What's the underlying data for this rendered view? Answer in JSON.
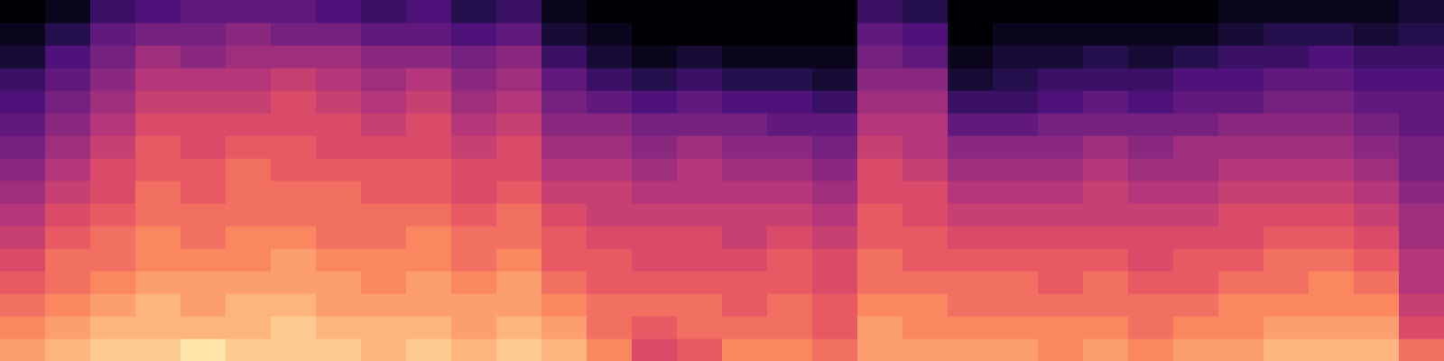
{
  "chart_data": {
    "type": "heatmap",
    "tick_labels": false,
    "color_range": [
      0,
      1
    ],
    "cells": [
      [
        0.8,
        0.75,
        0.7,
        0.65,
        0.6,
        0.55,
        0.5,
        0.45,
        0.4,
        0.35,
        0.3,
        0.25,
        0.2,
        0.1,
        0.05,
        0.0
      ],
      [
        0.85,
        0.8,
        0.75,
        0.7,
        0.7,
        0.65,
        0.6,
        0.55,
        0.5,
        0.45,
        0.4,
        0.35,
        0.3,
        0.25,
        0.15,
        0.05
      ],
      [
        0.9,
        0.85,
        0.8,
        0.75,
        0.7,
        0.7,
        0.65,
        0.6,
        0.6,
        0.55,
        0.5,
        0.45,
        0.4,
        0.35,
        0.3,
        0.2
      ],
      [
        0.9,
        0.85,
        0.85,
        0.8,
        0.75,
        0.75,
        0.7,
        0.7,
        0.65,
        0.65,
        0.6,
        0.55,
        0.5,
        0.45,
        0.35,
        0.25
      ],
      [
        0.95,
        0.85,
        0.8,
        0.8,
        0.75,
        0.7,
        0.7,
        0.65,
        0.65,
        0.6,
        0.6,
        0.55,
        0.5,
        0.4,
        0.35,
        0.3
      ],
      [
        0.9,
        0.85,
        0.85,
        0.8,
        0.75,
        0.75,
        0.7,
        0.7,
        0.7,
        0.65,
        0.6,
        0.55,
        0.5,
        0.45,
        0.4,
        0.3
      ],
      [
        0.9,
        0.9,
        0.85,
        0.8,
        0.8,
        0.75,
        0.7,
        0.7,
        0.65,
        0.65,
        0.6,
        0.6,
        0.55,
        0.45,
        0.35,
        0.3
      ],
      [
        0.9,
        0.85,
        0.8,
        0.8,
        0.75,
        0.7,
        0.7,
        0.7,
        0.65,
        0.6,
        0.6,
        0.55,
        0.5,
        0.45,
        0.35,
        0.25
      ],
      [
        0.85,
        0.85,
        0.8,
        0.75,
        0.75,
        0.7,
        0.7,
        0.65,
        0.65,
        0.6,
        0.55,
        0.5,
        0.45,
        0.4,
        0.3,
        0.2
      ],
      [
        0.9,
        0.85,
        0.8,
        0.8,
        0.75,
        0.75,
        0.7,
        0.65,
        0.65,
        0.6,
        0.6,
        0.55,
        0.5,
        0.4,
        0.3,
        0.25
      ],
      [
        0.85,
        0.8,
        0.8,
        0.75,
        0.7,
        0.7,
        0.65,
        0.6,
        0.6,
        0.55,
        0.5,
        0.45,
        0.4,
        0.35,
        0.25,
        0.15
      ],
      [
        0.9,
        0.85,
        0.8,
        0.8,
        0.75,
        0.7,
        0.7,
        0.65,
        0.6,
        0.6,
        0.55,
        0.5,
        0.45,
        0.4,
        0.3,
        0.2
      ],
      [
        0.85,
        0.8,
        0.75,
        0.7,
        0.65,
        0.65,
        0.6,
        0.55,
        0.5,
        0.45,
        0.4,
        0.35,
        0.3,
        0.2,
        0.1,
        0.05
      ],
      [
        0.75,
        0.7,
        0.7,
        0.65,
        0.65,
        0.6,
        0.55,
        0.55,
        0.5,
        0.45,
        0.4,
        0.3,
        0.2,
        0.1,
        0.05,
        0.0
      ],
      [
        0.6,
        0.65,
        0.7,
        0.65,
        0.6,
        0.6,
        0.55,
        0.5,
        0.45,
        0.4,
        0.35,
        0.25,
        0.15,
        0.05,
        0.0,
        0.0
      ],
      [
        0.65,
        0.7,
        0.7,
        0.65,
        0.6,
        0.6,
        0.55,
        0.5,
        0.5,
        0.45,
        0.35,
        0.3,
        0.2,
        0.1,
        0.0,
        0.0
      ],
      [
        0.75,
        0.7,
        0.65,
        0.65,
        0.6,
        0.55,
        0.55,
        0.5,
        0.45,
        0.4,
        0.35,
        0.25,
        0.15,
        0.05,
        0.0,
        0.0
      ],
      [
        0.75,
        0.7,
        0.7,
        0.65,
        0.65,
        0.6,
        0.55,
        0.5,
        0.45,
        0.4,
        0.3,
        0.25,
        0.15,
        0.05,
        0.0,
        0.0
      ],
      [
        0.7,
        0.65,
        0.65,
        0.6,
        0.6,
        0.55,
        0.5,
        0.45,
        0.4,
        0.35,
        0.3,
        0.2,
        0.1,
        0.05,
        0.0,
        0.0
      ],
      [
        0.8,
        0.8,
        0.75,
        0.7,
        0.7,
        0.65,
        0.65,
        0.6,
        0.6,
        0.55,
        0.5,
        0.45,
        0.4,
        0.35,
        0.3,
        0.2
      ],
      [
        0.8,
        0.75,
        0.75,
        0.7,
        0.65,
        0.65,
        0.6,
        0.6,
        0.55,
        0.5,
        0.5,
        0.45,
        0.4,
        0.3,
        0.25,
        0.15
      ],
      [
        0.8,
        0.75,
        0.7,
        0.7,
        0.65,
        0.6,
        0.55,
        0.5,
        0.45,
        0.4,
        0.3,
        0.2,
        0.1,
        0.05,
        0.0,
        0.0
      ],
      [
        0.8,
        0.75,
        0.7,
        0.7,
        0.65,
        0.6,
        0.55,
        0.5,
        0.45,
        0.4,
        0.3,
        0.2,
        0.15,
        0.1,
        0.05,
        0.0
      ],
      [
        0.75,
        0.75,
        0.7,
        0.65,
        0.65,
        0.6,
        0.55,
        0.5,
        0.45,
        0.4,
        0.35,
        0.25,
        0.2,
        0.1,
        0.05,
        0.0
      ],
      [
        0.8,
        0.75,
        0.7,
        0.7,
        0.65,
        0.6,
        0.55,
        0.55,
        0.5,
        0.45,
        0.35,
        0.3,
        0.2,
        0.15,
        0.05,
        0.0
      ],
      [
        0.75,
        0.7,
        0.7,
        0.65,
        0.6,
        0.6,
        0.55,
        0.5,
        0.45,
        0.4,
        0.35,
        0.25,
        0.2,
        0.1,
        0.05,
        0.0
      ],
      [
        0.8,
        0.75,
        0.7,
        0.65,
        0.65,
        0.6,
        0.55,
        0.5,
        0.45,
        0.45,
        0.35,
        0.3,
        0.25,
        0.15,
        0.05,
        0.0
      ],
      [
        0.8,
        0.75,
        0.75,
        0.7,
        0.65,
        0.6,
        0.6,
        0.55,
        0.5,
        0.45,
        0.4,
        0.3,
        0.25,
        0.2,
        0.1,
        0.05
      ],
      [
        0.85,
        0.8,
        0.75,
        0.7,
        0.7,
        0.65,
        0.6,
        0.55,
        0.5,
        0.45,
        0.4,
        0.35,
        0.3,
        0.2,
        0.15,
        0.05
      ],
      [
        0.85,
        0.8,
        0.75,
        0.75,
        0.7,
        0.65,
        0.6,
        0.55,
        0.5,
        0.45,
        0.4,
        0.35,
        0.3,
        0.25,
        0.15,
        0.05
      ],
      [
        0.85,
        0.8,
        0.75,
        0.7,
        0.65,
        0.6,
        0.55,
        0.5,
        0.45,
        0.4,
        0.35,
        0.3,
        0.25,
        0.2,
        0.1,
        0.05
      ],
      [
        0.7,
        0.6,
        0.55,
        0.5,
        0.5,
        0.45,
        0.45,
        0.4,
        0.35,
        0.35,
        0.3,
        0.3,
        0.25,
        0.2,
        0.15,
        0.1
      ]
    ]
  }
}
